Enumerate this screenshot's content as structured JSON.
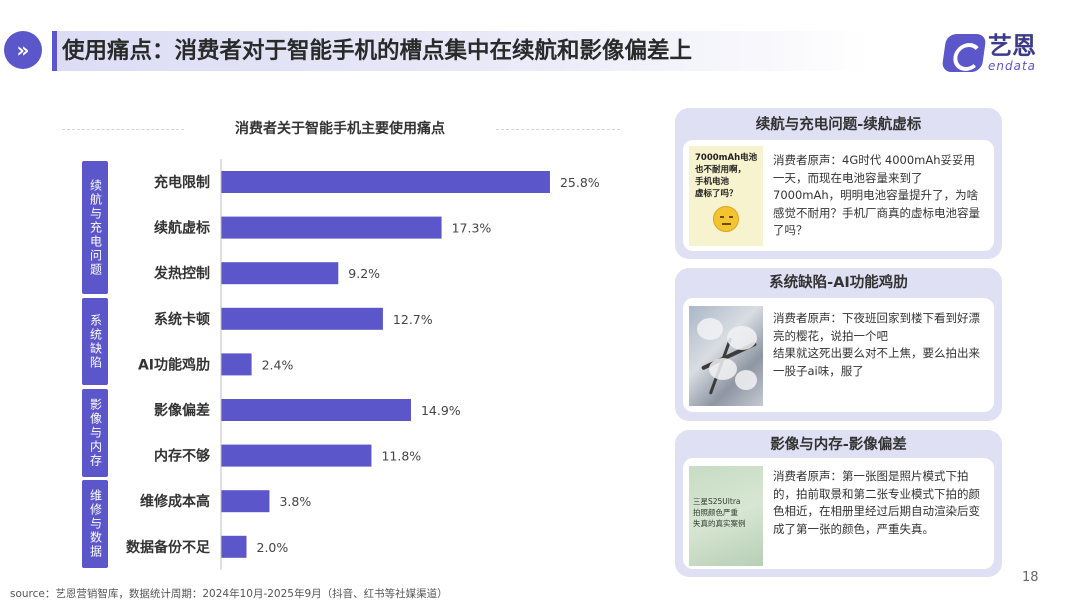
{
  "header": {
    "icon_glyph": "»",
    "title": "使用痛点：消费者对于智能手机的槽点集中在续航和影像偏差上",
    "accent_color": "#5b56c9"
  },
  "logo": {
    "name_cn": "艺恩",
    "name_en": "endata"
  },
  "chart_data": {
    "type": "bar",
    "orientation": "horizontal",
    "title": "消费者关于智能手机主要使用痛点",
    "groups": [
      {
        "label": "续航与充电问题",
        "categories": [
          "充电限制",
          "续航虚标",
          "发热控制"
        ]
      },
      {
        "label": "系统缺陷",
        "categories": [
          "系统卡顿",
          "AI功能鸡肋"
        ]
      },
      {
        "label": "影像与内存",
        "categories": [
          "影像偏差",
          "内存不够"
        ]
      },
      {
        "label": "维修与数据",
        "categories": [
          "维修成本高",
          "数据备份不足"
        ]
      }
    ],
    "categories": [
      "充电限制",
      "续航虚标",
      "发热控制",
      "系统卡顿",
      "AI功能鸡肋",
      "影像偏差",
      "内存不够",
      "维修成本高",
      "数据备份不足"
    ],
    "values": [
      25.8,
      17.3,
      9.2,
      12.7,
      2.4,
      14.9,
      11.8,
      3.8,
      2.0
    ],
    "value_labels": [
      "25.8%",
      "17.3%",
      "9.2%",
      "12.7%",
      "2.4%",
      "14.9%",
      "11.8%",
      "3.8%",
      "2.0%"
    ],
    "unit": "%",
    "xlim": [
      0,
      30
    ],
    "bar_color": "#5b56c9",
    "grid": false,
    "legend": "none"
  },
  "cards": [
    {
      "title": "续航与充电问题-续航虚标",
      "thumb_text": "7000mAh电池\n也不耐用啊，\n手机电池\n虚标了吗？",
      "text": "消费者原声：4G时代 4000mAh妥妥用一天，而现在电池容量来到了7000mAh，明明电池容量提升了，为啥感觉不耐用？手机厂商真的虚标电池容量了吗？"
    },
    {
      "title": "系统缺陷-AI功能鸡肋",
      "text": "消费者原声：下夜班回家到楼下看到好漂亮的樱花，说拍一个吧\n结果就这死出要么对不上焦，要么拍出来一股子ai味，服了"
    },
    {
      "title": "影像与内存-影像偏差",
      "thumb_text": "三星S25Ultra\n拍照颜色严重\n失真的真实案例",
      "text": "消费者原声：第一张图是照片模式下拍的，拍前取景和第二张专业模式下拍的颜色相近，在相册里经过后期自动渲染后变成了第一张的颜色，严重失真。"
    }
  ],
  "footer": {
    "source": "source：艺恩营销智库，数据统计周期：2024年10月-2025年9月（抖音、红书等社媒渠道）",
    "page_number": "18"
  }
}
